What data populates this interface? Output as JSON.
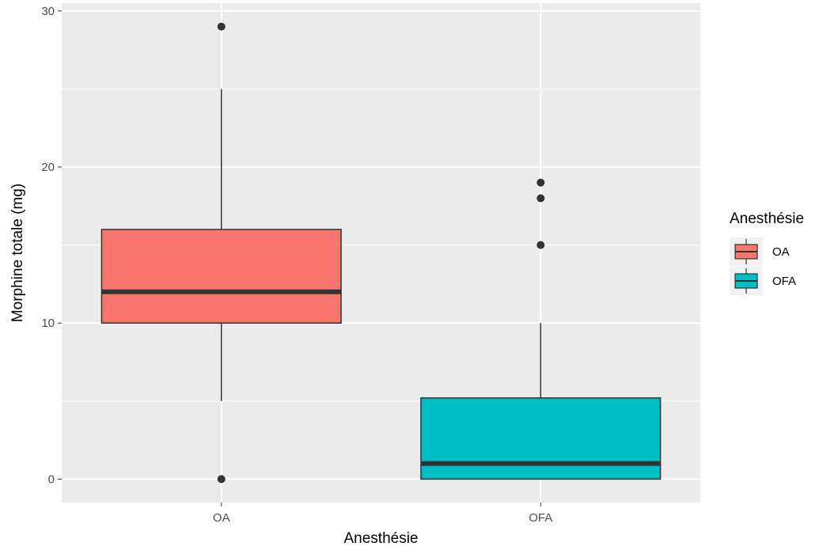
{
  "chart_data": {
    "type": "boxplot",
    "title": "",
    "xlabel": "Anesthésie",
    "ylabel": "Morphine totale (mg)",
    "categories": [
      "OA",
      "OFA"
    ],
    "ylim": [
      -1.5,
      30.5
    ],
    "yticks": [
      0,
      10,
      20,
      30
    ],
    "grid": true,
    "legend": {
      "title": "Anesthésie",
      "position": "right",
      "entries": [
        "OA",
        "OFA"
      ]
    },
    "series": [
      {
        "category": "OA",
        "color": "#F8766D",
        "q1": 10,
        "median": 12,
        "q3": 16,
        "whisker_low": 5,
        "whisker_high": 25,
        "outliers": [
          0,
          29
        ]
      },
      {
        "category": "OFA",
        "color": "#00BFC4",
        "q1": 0,
        "median": 1,
        "q3": 5.2,
        "whisker_low": 0,
        "whisker_high": 10,
        "outliers": [
          15,
          18,
          19
        ]
      }
    ]
  }
}
